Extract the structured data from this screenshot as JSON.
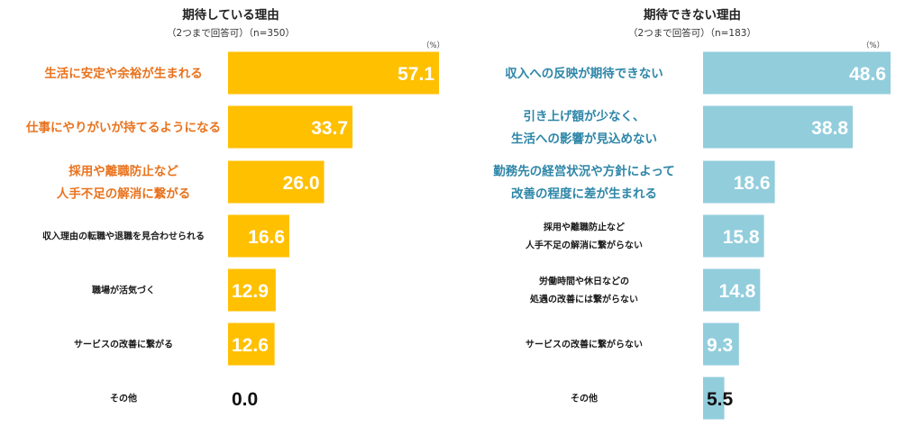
{
  "chart_data": [
    {
      "type": "bar",
      "orientation": "horizontal",
      "title": "期待している理由",
      "subtitle": "（2つまで回答可）（n=350）",
      "unit": "（%）",
      "color": "#FFC000",
      "label_color": "#E8731E",
      "categories": [
        [
          "生活に安定や余裕が生まれる"
        ],
        [
          "仕事にやりがいが持てるようになる"
        ],
        [
          "採用や離職防止など",
          "人手不足の解消に繋がる"
        ],
        [
          "収入理由の転職や退職を見合わせられる"
        ],
        [
          "職場が活気づく"
        ],
        [
          "サービスの改善に繋がる"
        ],
        [
          "その他"
        ]
      ],
      "highlight_count": 3,
      "values": [
        57.1,
        33.7,
        26.0,
        16.6,
        12.9,
        12.6,
        0.0
      ],
      "value_labels": [
        "57.1",
        "33.7",
        "26.0",
        "16.6",
        "12.9",
        "12.6",
        "0.0"
      ],
      "xlim": [
        0,
        60
      ],
      "grid": false
    },
    {
      "type": "bar",
      "orientation": "horizontal",
      "title": "期待できない理由",
      "subtitle": "（2つまで回答可）（n=183）",
      "unit": "（%）",
      "color": "#92CDDC",
      "label_color": "#2E86A8",
      "categories": [
        [
          "収入への反映が期待できない"
        ],
        [
          "引き上げ額が少なく、",
          "生活への影響が見込めない"
        ],
        [
          "勤務先の経営状況や方針によって",
          "改善の程度に差が生まれる"
        ],
        [
          "採用や離職防止など",
          "人手不足の解消に繋がらない"
        ],
        [
          "労働時間や休日などの",
          "処遇の改善には繋がらない"
        ],
        [
          "サービスの改善に繋がらない"
        ],
        [
          "その他"
        ]
      ],
      "highlight_count": 3,
      "values": [
        48.6,
        38.8,
        18.6,
        15.8,
        14.8,
        9.3,
        5.5
      ],
      "value_labels": [
        "48.6",
        "38.8",
        "18.6",
        "15.8",
        "14.8",
        "9.3",
        "5.5"
      ],
      "xlim": [
        0,
        50
      ],
      "grid": false
    }
  ]
}
